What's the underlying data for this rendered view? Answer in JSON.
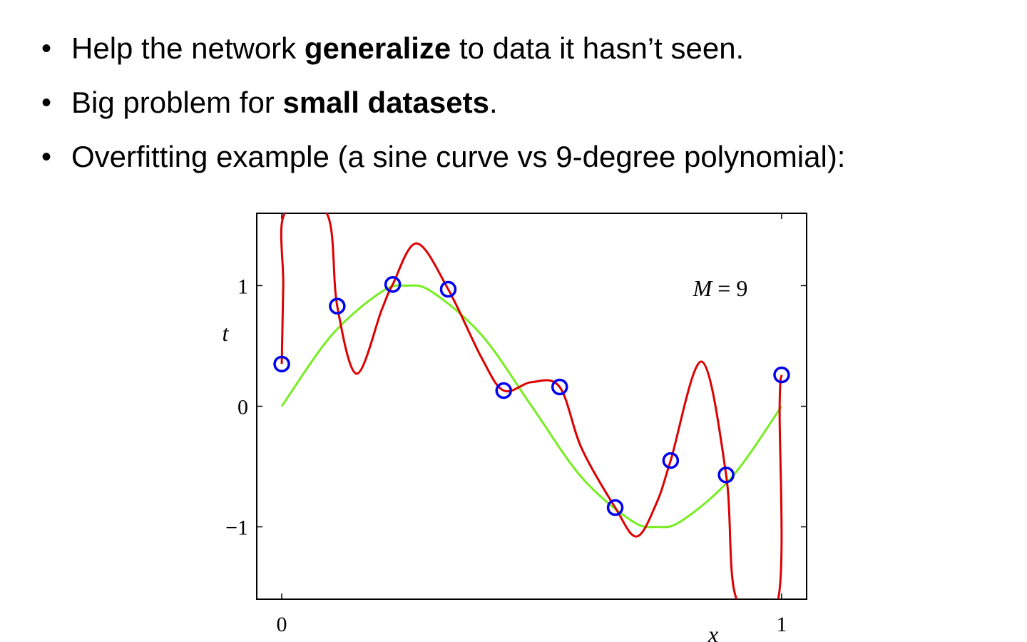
{
  "bullets": [
    {
      "pre": "Help the network ",
      "bold": "generalize",
      "post": " to data it hasn’t seen."
    },
    {
      "pre": "Big problem for ",
      "bold": "small datasets",
      "post": "."
    },
    {
      "pre": "Overfitting example (a sine curve vs 9-degree polynomial):",
      "bold": "",
      "post": ""
    }
  ],
  "bullet_glyph": "•",
  "chart_data": {
    "type": "line",
    "xlabel": "x",
    "ylabel": "t",
    "xlim": [
      -0.05,
      1.05
    ],
    "ylim": [
      -1.6,
      1.6
    ],
    "xticks": [
      0,
      1
    ],
    "yticks": [
      1,
      0,
      -1
    ],
    "xtick_labels": [
      "0",
      "1"
    ],
    "ytick_labels": [
      "1",
      "0",
      "−1"
    ],
    "annotation": {
      "var": "M",
      "eq": " = 9"
    },
    "grid": false,
    "series": [
      {
        "kind": "points",
        "color": "#0000ee",
        "x": [
          0.0,
          0.111,
          0.222,
          0.333,
          0.444,
          0.556,
          0.667,
          0.778,
          0.889,
          1.0
        ],
        "y": [
          0.35,
          0.83,
          1.01,
          0.97,
          0.13,
          0.16,
          -0.84,
          -0.45,
          -0.57,
          0.26
        ]
      },
      {
        "kind": "curve",
        "color": "#77ee22",
        "x": [
          0.0,
          0.1,
          0.2,
          0.25,
          0.3,
          0.4,
          0.5,
          0.6,
          0.7,
          0.75,
          0.8,
          0.9,
          1.0
        ],
        "y": [
          0.0,
          0.59,
          0.95,
          1.0,
          0.95,
          0.59,
          0.0,
          -0.59,
          -0.95,
          -1.0,
          -0.95,
          -0.59,
          0.0
        ]
      },
      {
        "kind": "curve",
        "color": "#dd0000",
        "x": [
          0.0,
          0.003,
          0.006,
          0.09,
          0.111,
          0.15,
          0.2,
          0.222,
          0.27,
          0.333,
          0.4,
          0.444,
          0.5,
          0.556,
          0.6,
          0.667,
          0.71,
          0.75,
          0.778,
          0.84,
          0.889,
          0.91,
          0.993,
          0.996,
          1.0
        ],
        "y": [
          0.35,
          1.0,
          1.6,
          1.6,
          0.83,
          0.27,
          0.8,
          1.01,
          1.35,
          0.97,
          0.4,
          0.13,
          0.2,
          0.16,
          -0.35,
          -0.84,
          -1.08,
          -0.8,
          -0.45,
          0.37,
          -0.57,
          -1.6,
          -1.6,
          0.0,
          0.26
        ]
      }
    ]
  }
}
